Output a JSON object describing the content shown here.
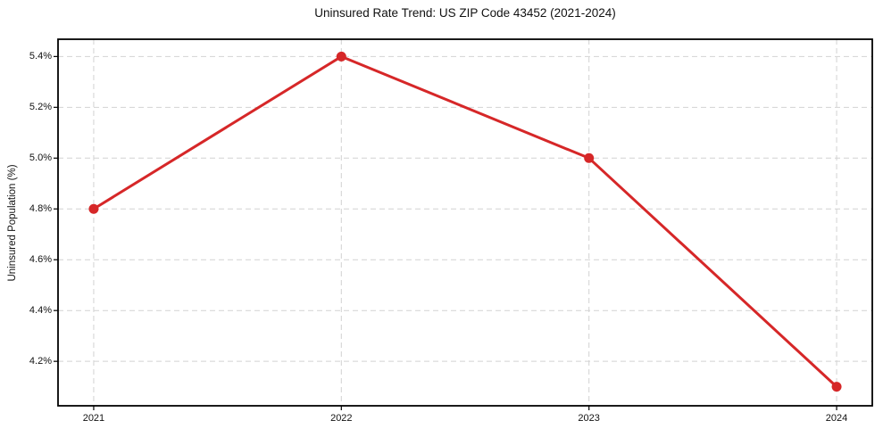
{
  "chart_data": {
    "type": "line",
    "title": "Uninsured Rate Trend: US ZIP Code 43452 (2021-2024)",
    "xlabel": "",
    "ylabel": "Uninsured Population (%)",
    "x": [
      2021,
      2022,
      2023,
      2024
    ],
    "values": [
      4.8,
      5.4,
      5.0,
      4.1
    ],
    "xticks": [
      2021,
      2022,
      2023,
      2024
    ],
    "xtick_labels": [
      "2021",
      "2022",
      "2023",
      "2024"
    ],
    "yticks": [
      4.2,
      4.4,
      4.6,
      4.8,
      5.0,
      5.2,
      5.4
    ],
    "ytick_labels": [
      "4.2%",
      "4.4%",
      "4.6%",
      "4.8%",
      "5.0%",
      "5.2%",
      "5.4%"
    ],
    "xlim": [
      2020.856,
      2024.144
    ],
    "ylim": [
      4.025,
      5.468
    ],
    "grid": true,
    "legend": "none",
    "line_color": "#d62728",
    "grid_color": "#d2d2d2",
    "axis_color": "#000000",
    "marker": "circle"
  }
}
